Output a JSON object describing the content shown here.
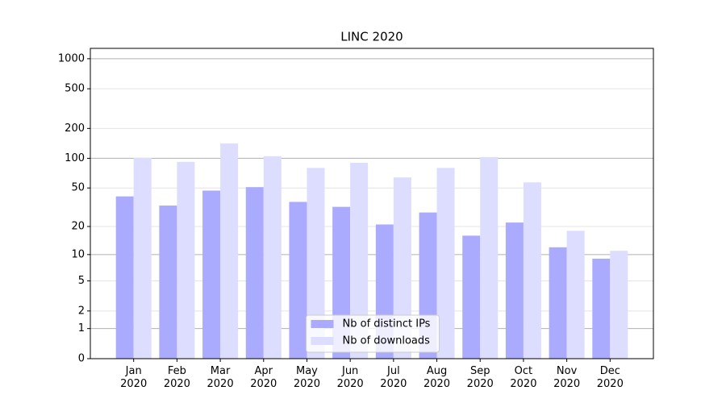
{
  "chart_data": {
    "type": "bar",
    "title": "LINC 2020",
    "categories": [
      "Jan\n2020",
      "Feb\n2020",
      "Mar\n2020",
      "Apr\n2020",
      "May\n2020",
      "Jun\n2020",
      "Jul\n2020",
      "Aug\n2020",
      "Sep\n2020",
      "Oct\n2020",
      "Nov\n2020",
      "Dec\n2020"
    ],
    "series": [
      {
        "name": "Nb of distinct IPs",
        "color": "#aaaaff",
        "values": [
          41,
          33,
          47,
          51,
          36,
          32,
          21,
          28,
          16,
          22,
          12,
          9
        ]
      },
      {
        "name": "Nb of downloads",
        "color": "#ddddff",
        "values": [
          101,
          92,
          141,
          105,
          80,
          90,
          64,
          80,
          103,
          57,
          18,
          11
        ]
      }
    ],
    "yscale": "log1p",
    "ylim": [
      0,
      1270
    ],
    "yticks": [
      0,
      1,
      2,
      5,
      10,
      20,
      50,
      100,
      200,
      500,
      1000
    ],
    "grid": true,
    "legend": "lower center"
  }
}
